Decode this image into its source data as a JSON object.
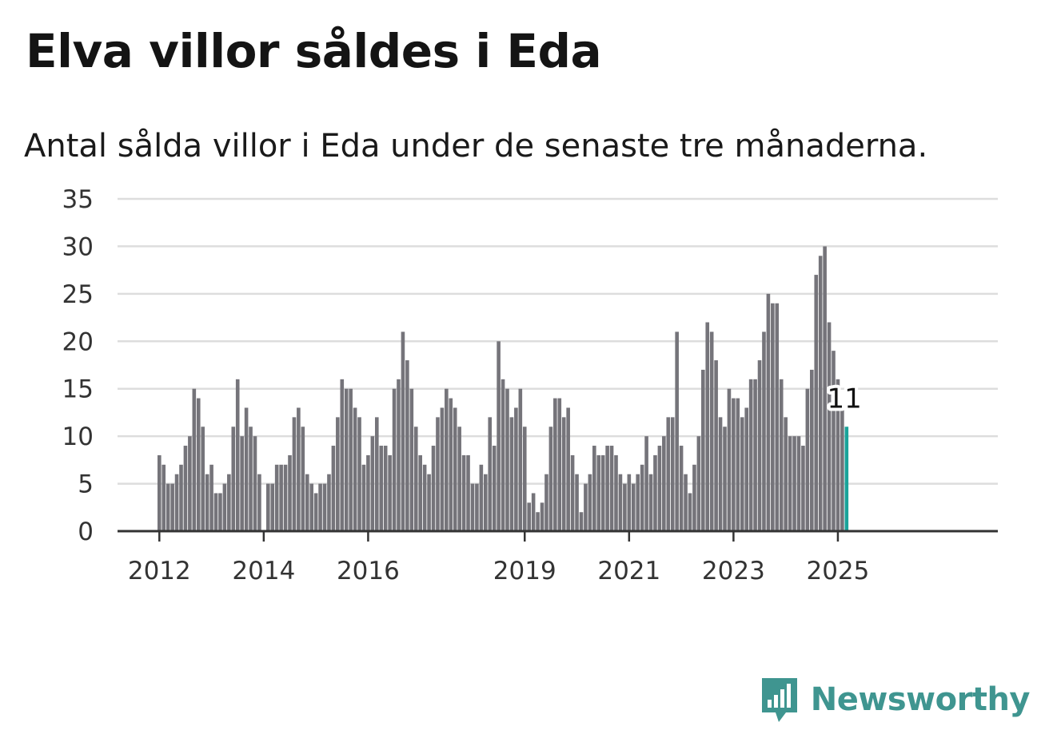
{
  "title": "Elva villor såldes i Eda",
  "subtitle": "Antal sålda villor i Eda under de senaste tre månaderna.",
  "brand": "Newsworthy",
  "colors": {
    "bar": "#75747a",
    "highlight": "#1aa39a",
    "grid": "#dddddd",
    "axis": "#333333",
    "brand": "#3f9590"
  },
  "chart_data": {
    "type": "bar",
    "start": "2012-01",
    "frequency": "monthly",
    "ylim": [
      0,
      35
    ],
    "yticks": [
      0,
      5,
      10,
      15,
      20,
      25,
      30,
      35
    ],
    "xticks": [
      "2012",
      "2014",
      "2016",
      "2019",
      "2021",
      "2023",
      "2025"
    ],
    "grid": true,
    "highlight_last": true,
    "last_value_label": "11",
    "values": [
      8,
      7,
      5,
      5,
      6,
      7,
      9,
      10,
      15,
      14,
      11,
      6,
      7,
      4,
      4,
      5,
      6,
      11,
      16,
      10,
      13,
      11,
      10,
      6,
      0,
      5,
      5,
      7,
      7,
      7,
      8,
      12,
      13,
      11,
      6,
      5,
      4,
      5,
      5,
      6,
      9,
      12,
      16,
      15,
      15,
      13,
      12,
      7,
      8,
      10,
      12,
      9,
      9,
      8,
      15,
      16,
      21,
      18,
      15,
      11,
      8,
      7,
      6,
      9,
      12,
      13,
      15,
      14,
      13,
      11,
      8,
      8,
      5,
      5,
      7,
      6,
      12,
      9,
      20,
      16,
      15,
      12,
      13,
      15,
      11,
      3,
      4,
      2,
      3,
      6,
      11,
      14,
      14,
      12,
      13,
      8,
      6,
      2,
      5,
      6,
      9,
      8,
      8,
      9,
      9,
      8,
      6,
      5,
      6,
      5,
      6,
      7,
      10,
      6,
      8,
      9,
      10,
      12,
      12,
      21,
      9,
      6,
      4,
      7,
      10,
      17,
      22,
      21,
      18,
      12,
      11,
      15,
      14,
      14,
      12,
      13,
      16,
      16,
      18,
      21,
      25,
      24,
      24,
      16,
      12,
      10,
      10,
      10,
      9,
      15,
      17,
      27,
      29,
      30,
      22,
      19,
      16,
      13,
      11
    ]
  }
}
